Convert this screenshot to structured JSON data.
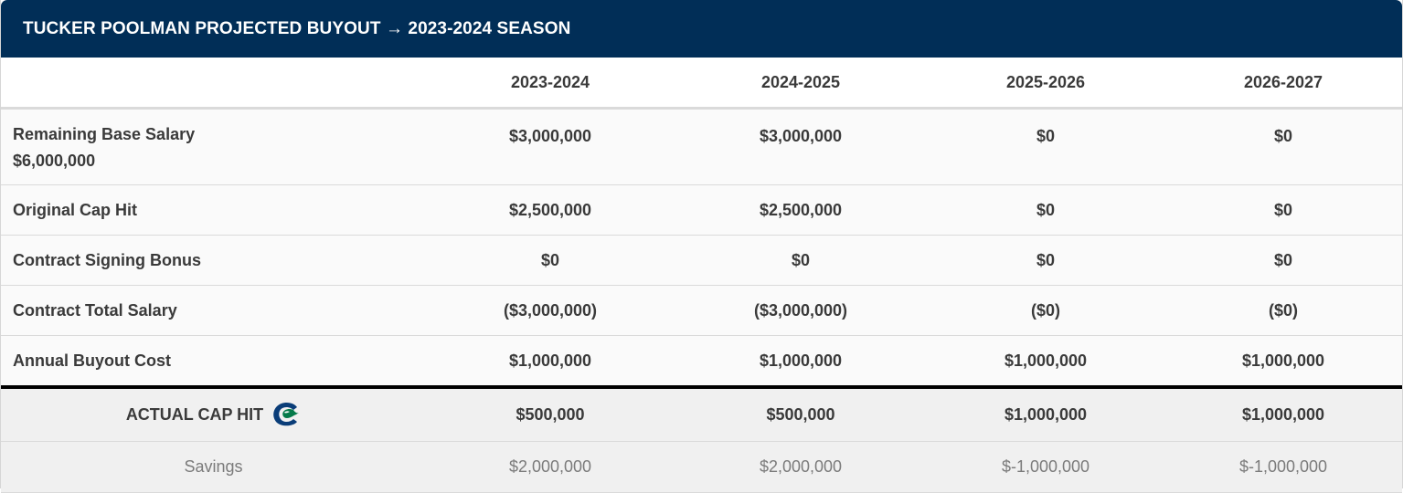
{
  "title": "TUCKER POOLMAN PROJECTED BUYOUT → 2023-2024 SEASON",
  "seasons": [
    "2023-2024",
    "2024-2025",
    "2025-2026",
    "2026-2027"
  ],
  "rows": {
    "base_salary": {
      "label": "Remaining Base Salary",
      "sublabel": "$6,000,000",
      "values": [
        "$3,000,000",
        "$3,000,000",
        "$0",
        "$0"
      ]
    },
    "cap_hit": {
      "label": "Original Cap Hit",
      "values": [
        "$2,500,000",
        "$2,500,000",
        "$0",
        "$0"
      ]
    },
    "signing_bonus": {
      "label": "Contract Signing Bonus",
      "values": [
        "$0",
        "$0",
        "$0",
        "$0"
      ]
    },
    "total_salary": {
      "label": "Contract Total Salary",
      "values": [
        "($3,000,000)",
        "($3,000,000)",
        "($0)",
        "($0)"
      ]
    },
    "buyout_cost": {
      "label": "Annual Buyout Cost",
      "values": [
        "$1,000,000",
        "$1,000,000",
        "$1,000,000",
        "$1,000,000"
      ]
    },
    "actual_cap_hit": {
      "label": "ACTUAL CAP HIT",
      "icon": "canucks-logo-icon",
      "values": [
        "$500,000",
        "$500,000",
        "$1,000,000",
        "$1,000,000"
      ]
    },
    "savings": {
      "label": "Savings",
      "values": [
        "$2,000,000",
        "$2,000,000",
        "$-1,000,000",
        "$-1,000,000"
      ]
    }
  },
  "colors": {
    "header_bg": "#012e57",
    "logo_blue": "#0a3d78",
    "logo_green": "#047a4a"
  }
}
